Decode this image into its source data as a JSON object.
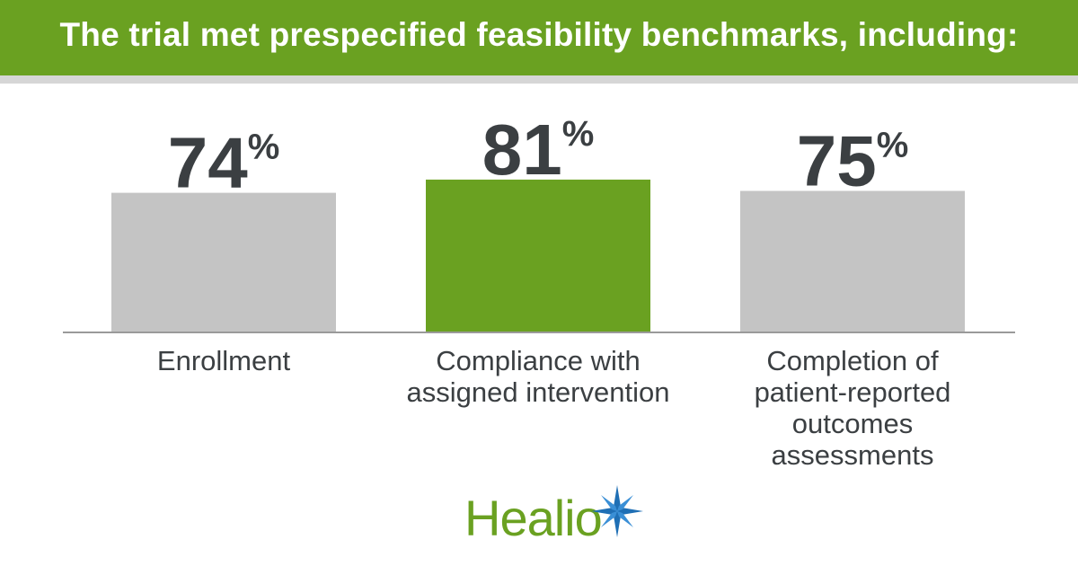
{
  "header": {
    "title": "The trial met prespecified feasibility benchmarks, including:"
  },
  "chart_data": {
    "type": "bar",
    "categories": [
      [
        "Enrollment"
      ],
      [
        "Compliance with",
        "assigned intervention"
      ],
      [
        "Completion of",
        "patient-reported",
        "outcomes",
        "assessments"
      ]
    ],
    "values": [
      74,
      81,
      75
    ],
    "value_suffix": "%",
    "highlight_index": 1,
    "colors": {
      "default": "#c4c4c4",
      "highlight": "#6aa121",
      "text": "#3b3f42",
      "baseline": "#9a9a9a"
    },
    "ylim": [
      0,
      100
    ],
    "grid": false,
    "legend": "none"
  },
  "logo": {
    "text": "Healio",
    "icon": "healio-star-icon",
    "colors": {
      "text": "#6aa121",
      "star": "#1f6fb5"
    }
  }
}
